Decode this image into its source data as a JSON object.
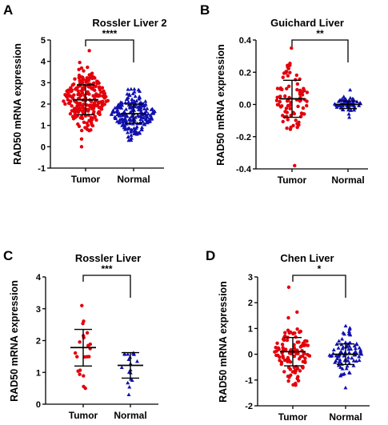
{
  "colors": {
    "tumor": "#e3000b",
    "normal": "#1111b0",
    "bar": "#000000"
  },
  "chart_data": [
    {
      "type": "scatter",
      "panel": "A",
      "title": "Rossler Liver 2",
      "ylabel": "RAD50 mRNA expression",
      "ylim": [
        -1,
        5
      ],
      "yticks": [
        -1,
        0,
        1,
        2,
        3,
        4,
        5
      ],
      "categories": [
        "Tumor",
        "Normal"
      ],
      "significance": "****",
      "series": [
        {
          "name": "Tumor",
          "marker": "circle",
          "mean": 2.2,
          "sd_low": 1.5,
          "sd_high": 2.9,
          "n": 225,
          "range": [
            0.0,
            4.5
          ]
        },
        {
          "name": "Normal",
          "marker": "triangle",
          "mean": 1.55,
          "sd_low": 1.1,
          "sd_high": 2.0,
          "n": 220,
          "range": [
            0.3,
            2.7
          ]
        }
      ]
    },
    {
      "type": "scatter",
      "panel": "B",
      "title": "Guichard Liver",
      "ylabel": "RAD50 mRNA expression",
      "ylim": [
        -0.4,
        0.4
      ],
      "yticks": [
        -0.4,
        -0.2,
        0.0,
        0.2,
        0.4
      ],
      "categories": [
        "Tumor",
        "Normal"
      ],
      "significance": "**",
      "series": [
        {
          "name": "Tumor",
          "marker": "circle",
          "mean": 0.035,
          "sd_low": -0.08,
          "sd_high": 0.15,
          "n": 85,
          "range": [
            -0.38,
            0.35
          ]
        },
        {
          "name": "Normal",
          "marker": "triangle",
          "mean": 0.0,
          "sd_low": -0.025,
          "sd_high": 0.02,
          "n": 60,
          "range": [
            -0.08,
            0.09
          ]
        }
      ]
    },
    {
      "type": "scatter",
      "panel": "C",
      "title": "Rossler Liver",
      "ylabel": "RAD50 mRNA expression",
      "ylim": [
        0,
        4
      ],
      "yticks": [
        0,
        1,
        2,
        3,
        4
      ],
      "categories": [
        "Tumor",
        "Normal"
      ],
      "significance": "***",
      "series": [
        {
          "name": "Tumor",
          "marker": "circle",
          "mean": 1.78,
          "sd_low": 1.2,
          "sd_high": 2.35,
          "n": 21,
          "range": [
            0.5,
            3.1
          ]
        },
        {
          "name": "Normal",
          "marker": "triangle",
          "mean": 1.22,
          "sd_low": 0.82,
          "sd_high": 1.62,
          "n": 19,
          "range": [
            0.3,
            1.6
          ]
        }
      ]
    },
    {
      "type": "scatter",
      "panel": "D",
      "title": "Chen Liver",
      "ylabel": "RAD50 mRNA expression",
      "ylim": [
        -2,
        3
      ],
      "yticks": [
        -2,
        -1,
        0,
        1,
        2,
        3
      ],
      "categories": [
        "Tumor",
        "Normal"
      ],
      "significance": "*",
      "series": [
        {
          "name": "Tumor",
          "marker": "circle",
          "mean": 0.1,
          "sd_low": -0.45,
          "sd_high": 0.65,
          "n": 110,
          "range": [
            -1.2,
            2.6
          ]
        },
        {
          "name": "Normal",
          "marker": "triangle",
          "mean": 0.0,
          "sd_low": -0.4,
          "sd_high": 0.4,
          "n": 90,
          "range": [
            -1.3,
            1.1
          ]
        }
      ]
    }
  ]
}
